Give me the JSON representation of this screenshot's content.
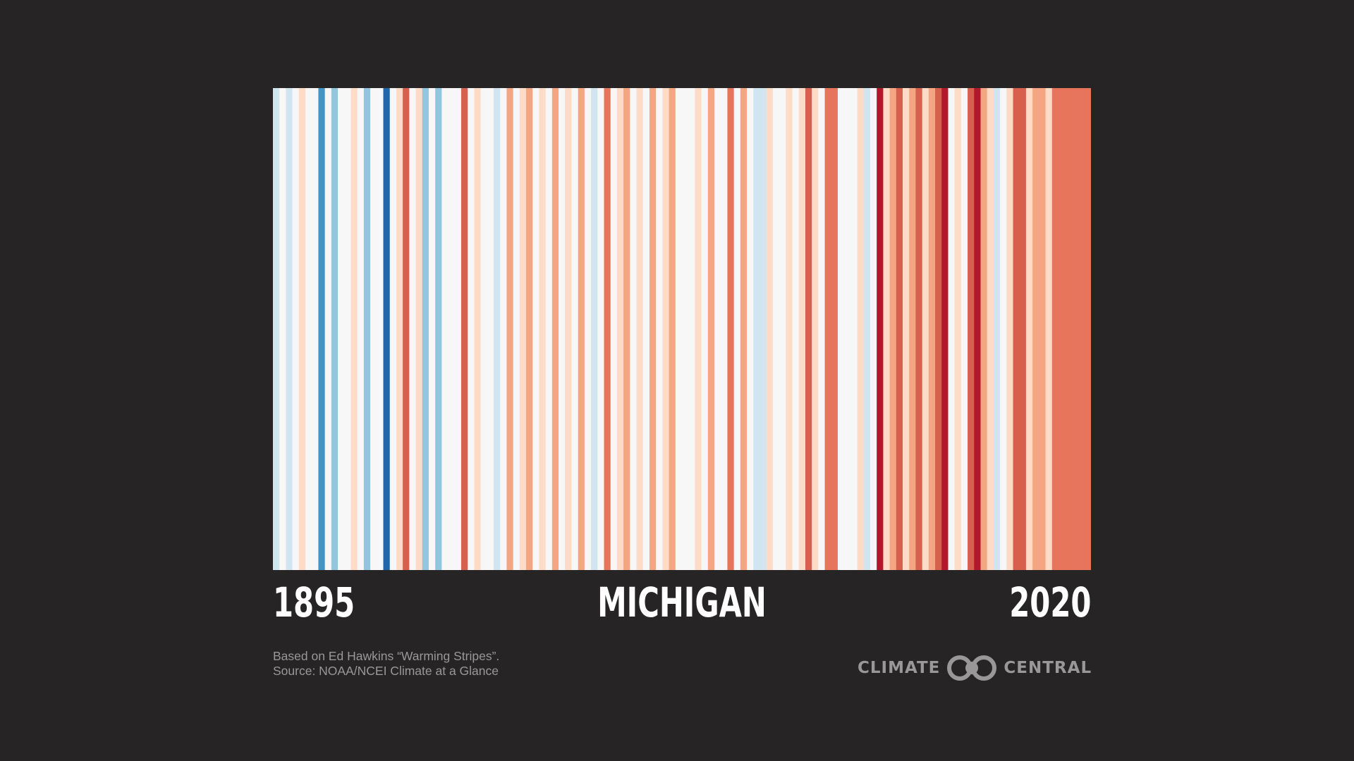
{
  "chart_data": {
    "type": "heatmap",
    "title": "MICHIGAN",
    "x_start_label": "1895",
    "x_end_label": "2020",
    "x": [
      1895,
      1896,
      1897,
      1898,
      1899,
      1900,
      1901,
      1902,
      1903,
      1904,
      1905,
      1906,
      1907,
      1908,
      1909,
      1910,
      1911,
      1912,
      1913,
      1914,
      1915,
      1916,
      1917,
      1918,
      1919,
      1920,
      1921,
      1922,
      1923,
      1924,
      1925,
      1926,
      1927,
      1928,
      1929,
      1930,
      1931,
      1932,
      1933,
      1934,
      1935,
      1936,
      1937,
      1938,
      1939,
      1940,
      1941,
      1942,
      1943,
      1944,
      1945,
      1946,
      1947,
      1948,
      1949,
      1950,
      1951,
      1952,
      1953,
      1954,
      1955,
      1956,
      1957,
      1958,
      1959,
      1960,
      1961,
      1962,
      1963,
      1964,
      1965,
      1966,
      1967,
      1968,
      1969,
      1970,
      1971,
      1972,
      1973,
      1974,
      1975,
      1976,
      1977,
      1978,
      1979,
      1980,
      1981,
      1982,
      1983,
      1984,
      1985,
      1986,
      1987,
      1988,
      1989,
      1990,
      1991,
      1992,
      1993,
      1994,
      1995,
      1996,
      1997,
      1998,
      1999,
      2000,
      2001,
      2002,
      2003,
      2004,
      2005,
      2006,
      2007,
      2008,
      2009,
      2010,
      2011,
      2012,
      2013,
      2014,
      2015,
      2016,
      2017,
      2018,
      2019,
      2020
    ],
    "colors": [
      "#d1e5f0",
      "#f7f7f7",
      "#d1e5f0",
      "#f7f7f7",
      "#fddbc7",
      "#f7f7f7",
      "#f7f7f7",
      "#4393c3",
      "#f7f7f7",
      "#92c5de",
      "#f7f7f7",
      "#f7f7f7",
      "#fddbc7",
      "#f7f7f7",
      "#92c5de",
      "#f7f7f7",
      "#f7f7f7",
      "#2166ac",
      "#f7f7f7",
      "#fddbc7",
      "#d6604d",
      "#f7f7f7",
      "#fddbc7",
      "#92c5de",
      "#f7f7f7",
      "#92c5de",
      "#f7f7f7",
      "#f7f7f7",
      "#f7f7f7",
      "#d6604d",
      "#f7f7f7",
      "#fddbc7",
      "#f7f7f7",
      "#f7f7f7",
      "#d1e5f0",
      "#f7f7f7",
      "#f4a582",
      "#f7f7f7",
      "#fddbc7",
      "#f4a582",
      "#f7f7f7",
      "#fddbc7",
      "#f7f7f7",
      "#f4a582",
      "#f7f7f7",
      "#fddbc7",
      "#f7f7f7",
      "#f4a582",
      "#f7f7f7",
      "#d1e5f0",
      "#f7f7f7",
      "#e6755c",
      "#f7f7f7",
      "#fddbc7",
      "#f4a582",
      "#f7f7f7",
      "#fddbc7",
      "#f7f7f7",
      "#f4a582",
      "#f7f7f7",
      "#fddbc7",
      "#f4a582",
      "#f7f7f7",
      "#f7f7f7",
      "#f7f7f7",
      "#fddbc7",
      "#f7f7f7",
      "#f4a582",
      "#f7f7f7",
      "#f7f7f7",
      "#e6755c",
      "#f7f7f7",
      "#f4a582",
      "#f7f7f7",
      "#d1e5f0",
      "#d1e5f0",
      "#fddbc7",
      "#f7f7f7",
      "#f7f7f7",
      "#fddbc7",
      "#f7f7f7",
      "#fddbc7",
      "#d6604d",
      "#fddbc7",
      "#f7f7f7",
      "#e6755c",
      "#e6755c",
      "#f7f7f7",
      "#f7f7f7",
      "#f7f7f7",
      "#fddbc7",
      "#d1e5f0",
      "#f7f7f7",
      "#b2182b",
      "#fddbc7",
      "#f4a582",
      "#d6604d",
      "#fddbc7",
      "#f4a582",
      "#d6604d",
      "#fddbc7",
      "#f4a582",
      "#d6604d",
      "#b2182b",
      "#f7f7f7",
      "#fddbc7",
      "#f7f7f7",
      "#d6604d",
      "#b2182b",
      "#f4a582",
      "#fddbc7",
      "#d1e5f0",
      "#f7f7f7",
      "#fddbc7",
      "#d6604d",
      "#d6604d",
      "#fddbc7",
      "#f4a582",
      "#f4a582",
      "#fddbc7",
      "#e6755c",
      "#e6755c",
      "#e6755c",
      "#e6755c",
      "#e6755c",
      "#e6755c"
    ]
  },
  "credits": {
    "line1": "Based on Ed Hawkins “Warming Stripes”.",
    "line2": "Source: NOAA/NCEI Climate at a Glance"
  },
  "logo": {
    "left_text": "CLIMATE",
    "right_text": "CENTRAL",
    "mark_icon": "climate-central-rings-icon",
    "color": "#9a9798"
  }
}
